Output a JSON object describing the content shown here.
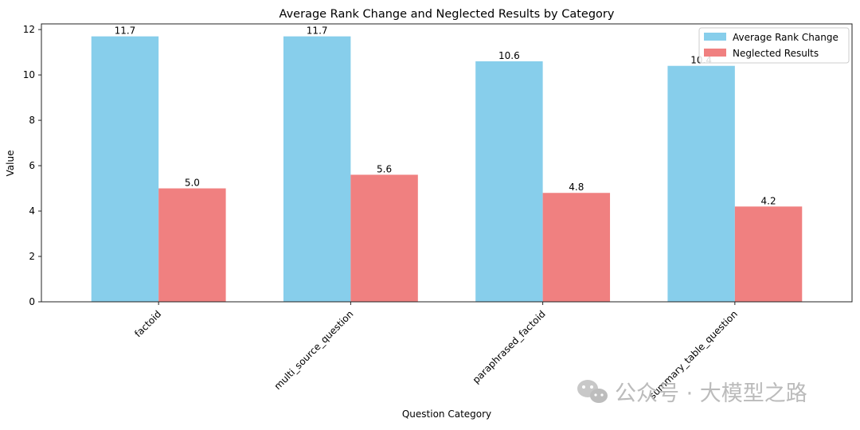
{
  "chart_data": {
    "type": "bar",
    "title": "Average Rank Change and Neglected Results by Category",
    "xlabel": "Question Category",
    "ylabel": "Value",
    "ylim": [
      0,
      12.25
    ],
    "yticks": [
      0,
      2,
      4,
      6,
      8,
      10,
      12
    ],
    "categories": [
      "factoid",
      "multi_source_question",
      "paraphrased_factoid",
      "summary_table_question"
    ],
    "series": [
      {
        "name": "Average Rank Change",
        "values": [
          11.7,
          11.7,
          10.6,
          10.4
        ],
        "labels": [
          "11.7",
          "11.7",
          "10.6",
          "10.4"
        ],
        "color": "#87ceeb"
      },
      {
        "name": "Neglected Results",
        "values": [
          5.0,
          5.6,
          4.8,
          4.2
        ],
        "labels": [
          "5.0",
          "5.6",
          "4.8",
          "4.2"
        ],
        "color": "#f08080"
      }
    ],
    "grid": false,
    "legend_position": "top-right"
  },
  "watermark": {
    "text": "公众号 · 大模型之路"
  }
}
